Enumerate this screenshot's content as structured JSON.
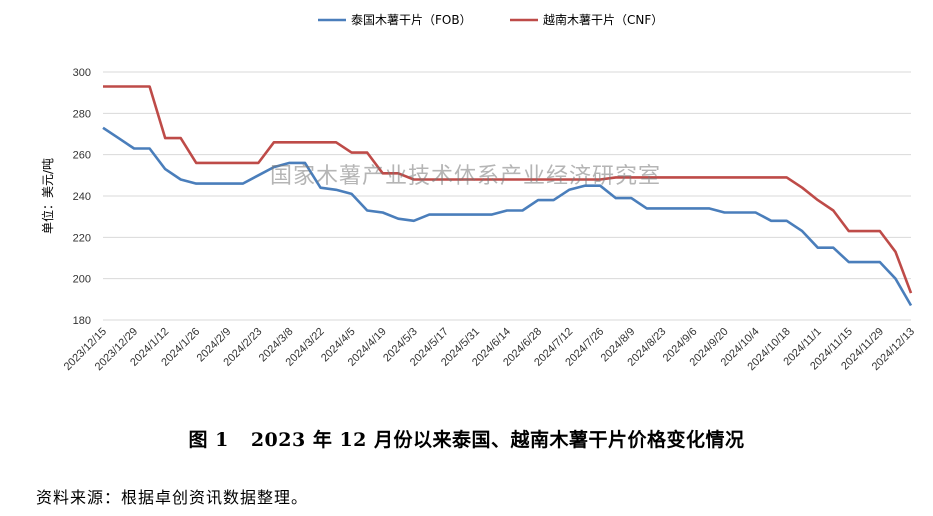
{
  "chart_data": {
    "type": "line",
    "ylabel": "单位：美元/吨",
    "ylim": [
      180,
      300
    ],
    "yticks": [
      180,
      200,
      220,
      240,
      260,
      280,
      300
    ],
    "grid": "horizontal",
    "legend_position": "top-center",
    "x": [
      "2023/12/15",
      "2023/12/22",
      "2023/12/29",
      "2024/1/5",
      "2024/1/12",
      "2024/1/19",
      "2024/1/26",
      "2024/2/2",
      "2024/2/9",
      "2024/2/16",
      "2024/2/23",
      "2024/3/1",
      "2024/3/8",
      "2024/3/15",
      "2024/3/22",
      "2024/3/29",
      "2024/4/5",
      "2024/4/12",
      "2024/4/19",
      "2024/4/26",
      "2024/5/3",
      "2024/5/10",
      "2024/5/17",
      "2024/5/24",
      "2024/5/31",
      "2024/6/7",
      "2024/6/14",
      "2024/6/21",
      "2024/6/28",
      "2024/7/5",
      "2024/7/12",
      "2024/7/19",
      "2024/7/26",
      "2024/8/2",
      "2024/8/9",
      "2024/8/16",
      "2024/8/23",
      "2024/8/30",
      "2024/9/6",
      "2024/9/13",
      "2024/9/20",
      "2024/9/27",
      "2024/10/4",
      "2024/10/11",
      "2024/10/18",
      "2024/10/25",
      "2024/11/1",
      "2024/11/8",
      "2024/11/15",
      "2024/11/22",
      "2024/11/29",
      "2024/12/6",
      "2024/12/13"
    ],
    "xtick_labels": [
      "2023/12/15",
      "2023/12/29",
      "2024/1/12",
      "2024/1/26",
      "2024/2/9",
      "2024/2/23",
      "2024/3/8",
      "2024/3/22",
      "2024/4/5",
      "2024/4/19",
      "2024/5/3",
      "2024/5/17",
      "2024/5/31",
      "2024/6/14",
      "2024/6/28",
      "2024/7/12",
      "2024/7/26",
      "2024/8/9",
      "2024/8/23",
      "2024/9/6",
      "2024/9/20",
      "2024/10/4",
      "2024/10/18",
      "2024/11/1",
      "2024/11/15",
      "2024/11/29",
      "2024/12/13"
    ],
    "series": [
      {
        "name": "泰国木薯干片（FOB）",
        "color": "#4a7ebb",
        "values": [
          273,
          268,
          263,
          263,
          253,
          248,
          246,
          246,
          246,
          246,
          250,
          254,
          256,
          256,
          244,
          243,
          241,
          233,
          232,
          229,
          228,
          231,
          231,
          231,
          231,
          231,
          233,
          233,
          238,
          238,
          243,
          245,
          245,
          239,
          239,
          234,
          234,
          234,
          234,
          234,
          232,
          232,
          232,
          228,
          228,
          223,
          215,
          215,
          208,
          208,
          208,
          200,
          187
        ]
      },
      {
        "name": "越南木薯干片（CNF）",
        "color": "#be4b48",
        "values": [
          293,
          293,
          293,
          293,
          268,
          268,
          256,
          256,
          256,
          256,
          256,
          266,
          266,
          266,
          266,
          266,
          261,
          261,
          251,
          251,
          248,
          248,
          248,
          248,
          248,
          248,
          248,
          248,
          248,
          248,
          248,
          248,
          248,
          249,
          249,
          249,
          249,
          249,
          249,
          249,
          249,
          249,
          249,
          249,
          249,
          244,
          238,
          233,
          223,
          223,
          223,
          213,
          193
        ]
      }
    ]
  },
  "watermark": "国家木薯产业技术体系产业经济研究室",
  "caption": {
    "number": "图 1",
    "text": "2023 年 12 月份以来泰国、越南木薯干片价格变化情况"
  },
  "source": "资料来源：根据卓创资讯数据整理。"
}
